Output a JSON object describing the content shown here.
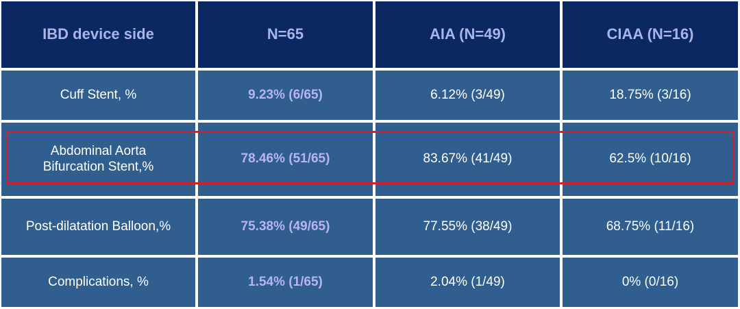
{
  "table": {
    "headers": [
      "IBD device side",
      "N=65",
      "AIA (N=49)",
      "CIAA (N=16)"
    ],
    "rows": [
      [
        "Cuff Stent, %",
        "9.23% (6/65)",
        "6.12% (3/49)",
        "18.75% (3/16)"
      ],
      [
        "Abdominal Aorta\nBifurcation Stent,%",
        "78.46% (51/65)",
        "83.67% (41/49)",
        "62.5% (10/16)"
      ],
      [
        "Post-dilatation Balloon,%",
        "75.38% (49/65)",
        "77.55% (38/49)",
        "68.75% (11/16)"
      ],
      [
        "Complications, %",
        "1.54% (1/65)",
        "2.04% (1/49)",
        "0% (0/16)"
      ]
    ],
    "highlighted_row": 1
  },
  "colors": {
    "header_bg": "#0b2863",
    "header_text": "#a9b4e8",
    "body_bg": "#2f5e8f",
    "body_text": "#ffffff",
    "accent_text": "#b8b4ef",
    "highlight_border": "#d2202e"
  }
}
